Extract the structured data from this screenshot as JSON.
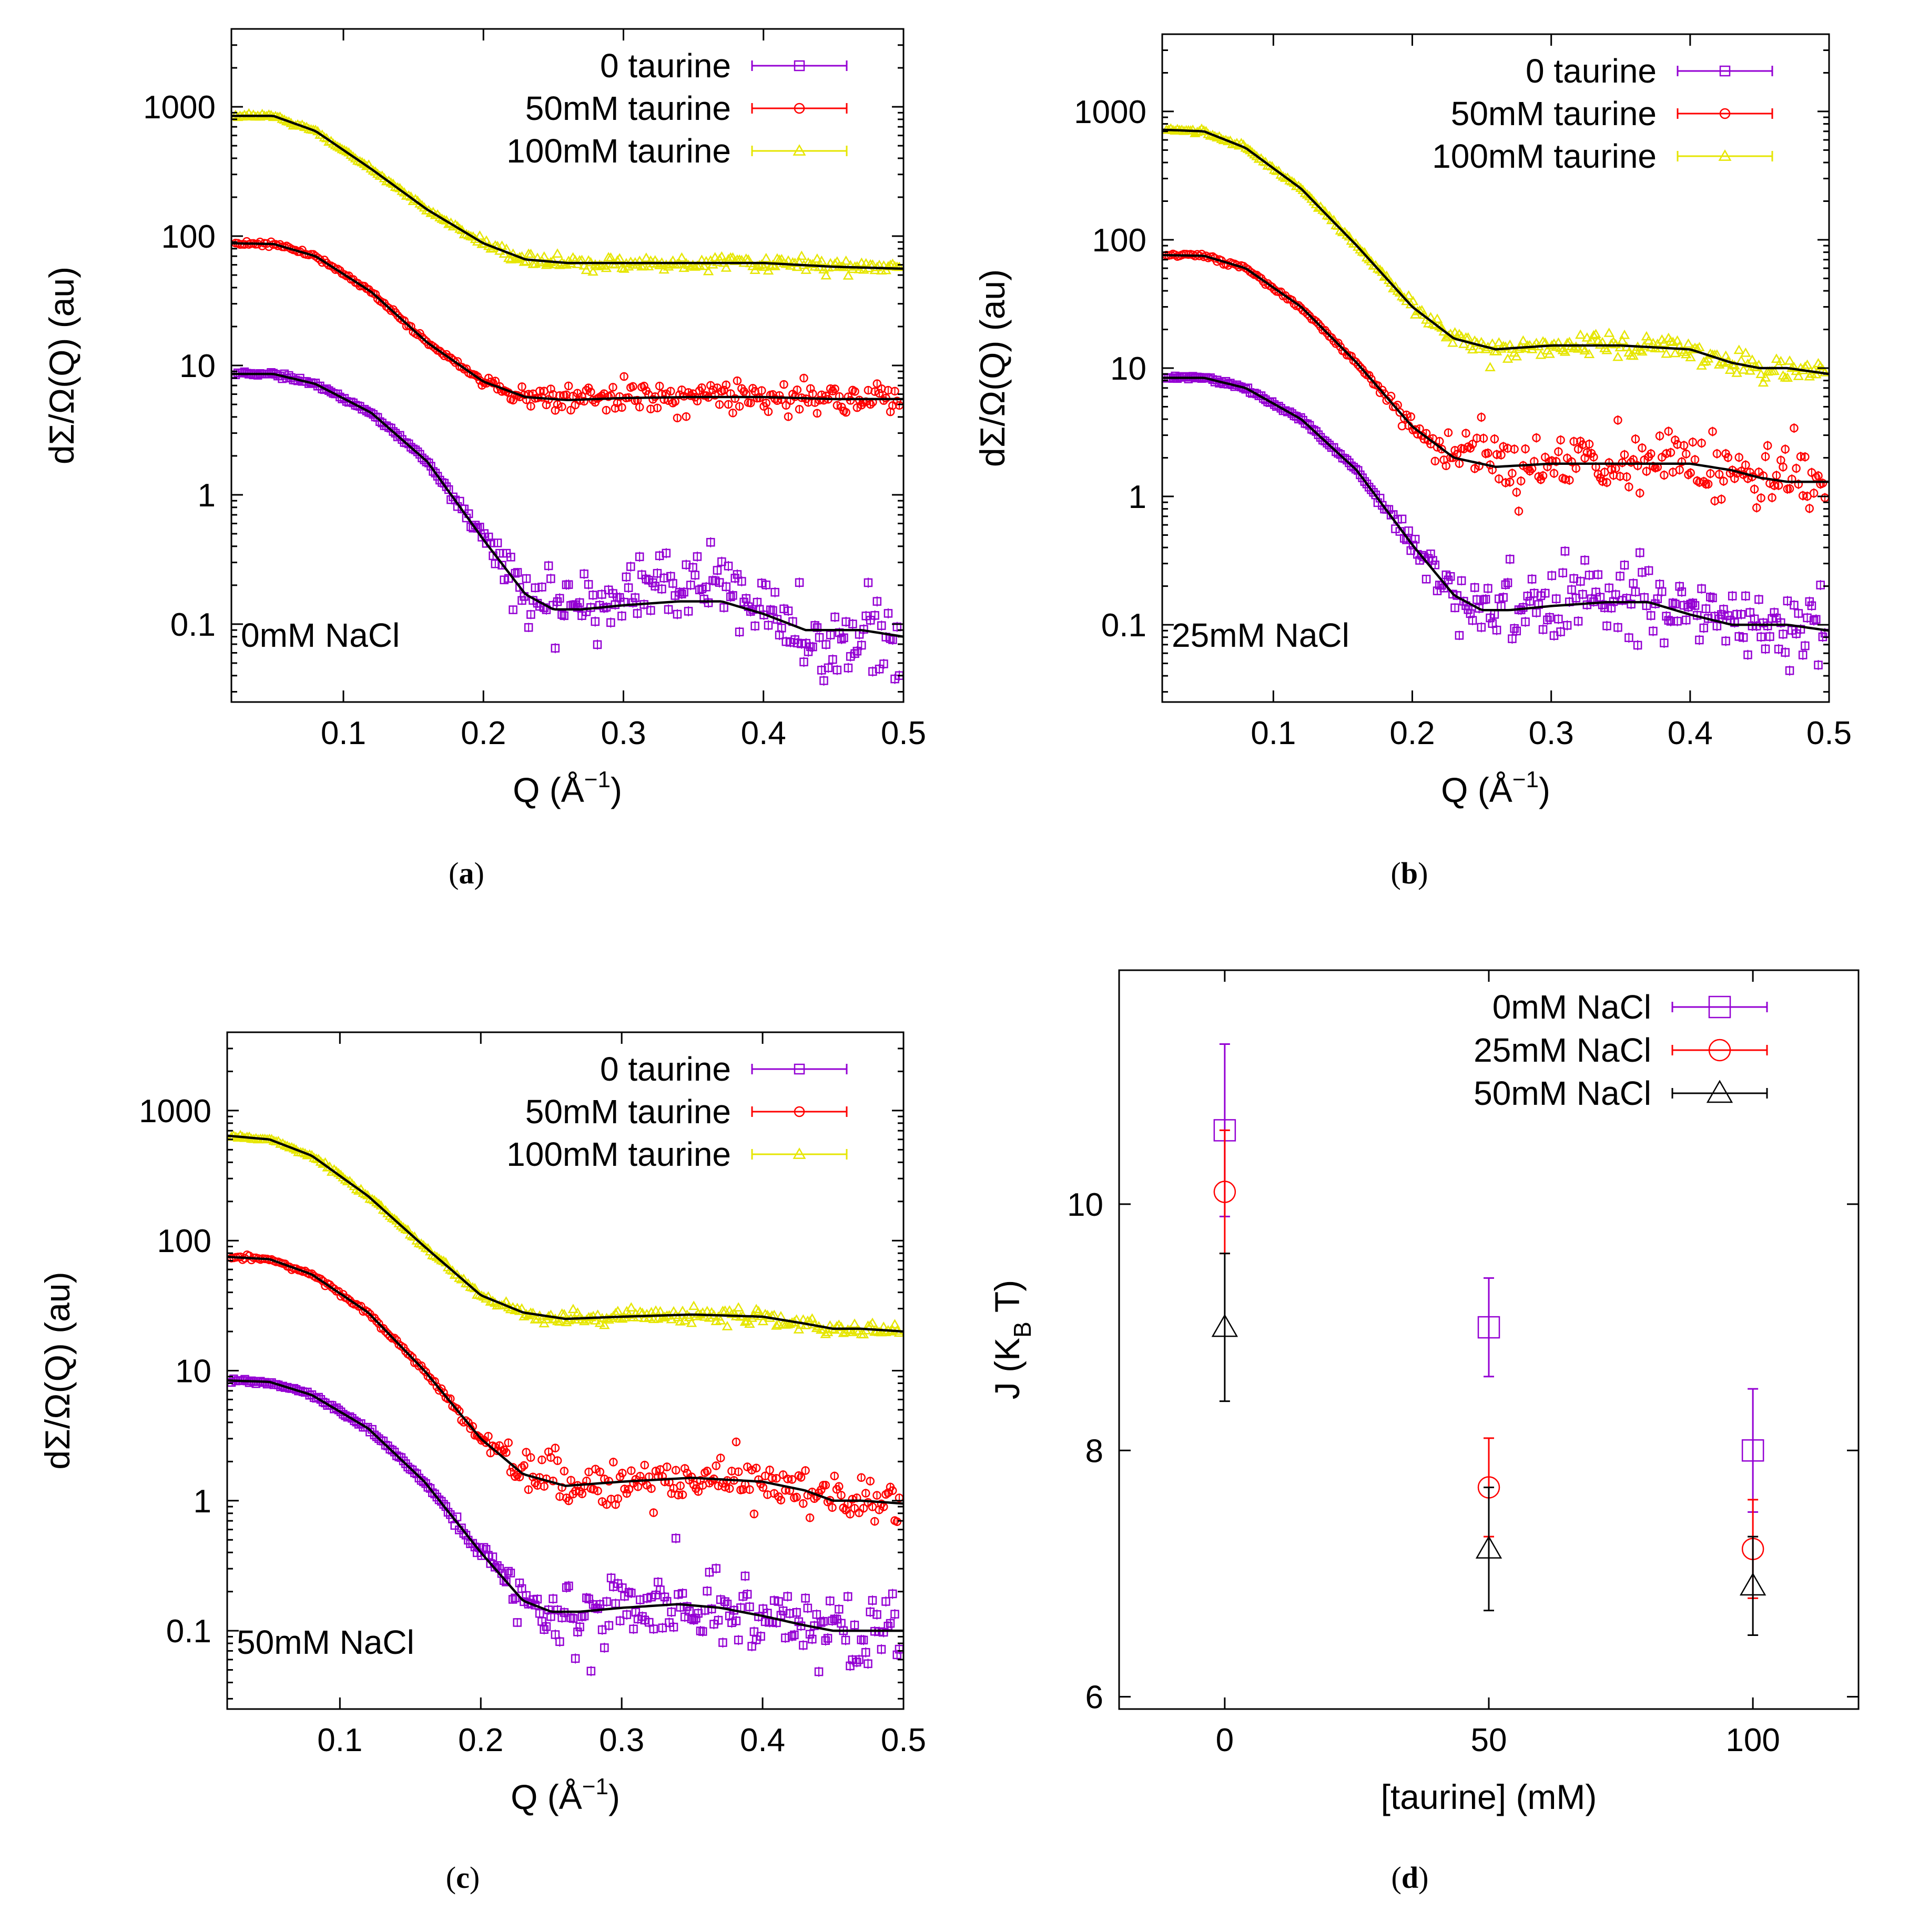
{
  "chart_data": [
    {
      "panel": "a",
      "caption": "(a)",
      "type": "scatter",
      "xscale": "linear",
      "yscale": "log",
      "xlabel": "Q (Å−1)",
      "xlabel_parts": [
        "Q (Å",
        "−1",
        ")"
      ],
      "ylabel": "dΣ/Ω(Q) (au)",
      "xlim": [
        0.02,
        0.5
      ],
      "ylim": [
        0.025,
        4000
      ],
      "xticks": [
        0.1,
        0.2,
        0.3,
        0.4,
        0.5
      ],
      "xtick_labels": [
        "0.1",
        "0.2",
        "0.3",
        "0.4",
        "0.5"
      ],
      "yticks": [
        0.1,
        1,
        10,
        100,
        1000
      ],
      "ytick_labels": [
        "0.1",
        "1",
        "10",
        "100",
        "1000"
      ],
      "annotation": "0mM NaCl",
      "legend_position": "top-right",
      "series": [
        {
          "name": "0 taurine",
          "color": "#9400d3",
          "marker": "square",
          "amplitude": 8.6,
          "rg": 33,
          "plateau": 0.15,
          "noise": 0.35,
          "bumps": [
            [
              0.35,
              0.35,
              0.05
            ],
            [
              0.45,
              -0.3,
              0.025
            ]
          ],
          "fit_x": [
            0.02,
            0.05,
            0.08,
            0.12,
            0.16,
            0.2,
            0.23,
            0.25,
            0.27,
            0.3,
            0.34,
            0.37,
            0.4,
            0.43,
            0.45,
            0.47,
            0.5
          ],
          "fit_y": [
            8.6,
            8.6,
            7.2,
            4.3,
            1.8,
            0.45,
            0.17,
            0.13,
            0.13,
            0.14,
            0.15,
            0.15,
            0.12,
            0.09,
            0.09,
            0.09,
            0.08
          ]
        },
        {
          "name": "50mM taurine",
          "color": "#ff0000",
          "marker": "circle",
          "amplitude": 88,
          "rg": 28,
          "plateau": 5.6,
          "noise": 0.12,
          "bumps": [],
          "fit_x": [
            0.02,
            0.05,
            0.08,
            0.12,
            0.16,
            0.2,
            0.23,
            0.26,
            0.3,
            0.35,
            0.4,
            0.45,
            0.5
          ],
          "fit_y": [
            88,
            87,
            70,
            37,
            15,
            7.5,
            5.7,
            5.4,
            5.6,
            5.7,
            5.7,
            5.5,
            5.5
          ]
        },
        {
          "name": "100mM taurine",
          "color": "#e6e600",
          "marker": "triangle",
          "amplitude": 850,
          "rg": 28,
          "plateau": 62,
          "noise": 0.05,
          "bumps": [],
          "fit_x": [
            0.02,
            0.05,
            0.08,
            0.12,
            0.16,
            0.2,
            0.23,
            0.26,
            0.3,
            0.35,
            0.4,
            0.45,
            0.5
          ],
          "fit_y": [
            850,
            850,
            650,
            330,
            160,
            88,
            66,
            62,
            62,
            62,
            62,
            58,
            56
          ]
        }
      ]
    },
    {
      "panel": "b",
      "caption": "(b)",
      "type": "scatter",
      "xscale": "linear",
      "yscale": "log",
      "xlabel": "Q (Å−1)",
      "xlabel_parts": [
        "Q (Å",
        "−1",
        ")"
      ],
      "ylabel": "dΣ/Ω(Q) (au)",
      "xlim": [
        0.02,
        0.5
      ],
      "ylim": [
        0.025,
        4000
      ],
      "xticks": [
        0.1,
        0.2,
        0.3,
        0.4,
        0.5
      ],
      "xtick_labels": [
        "0.1",
        "0.2",
        "0.3",
        "0.4",
        "0.5"
      ],
      "yticks": [
        0.1,
        1,
        10,
        100,
        1000
      ],
      "ytick_labels": [
        "0.1",
        "1",
        "10",
        "100",
        "1000"
      ],
      "annotation": "25mM NaCl",
      "legend_position": "top-right",
      "series": [
        {
          "name": "0 taurine",
          "color": "#9400d3",
          "marker": "square",
          "amplitude": 8.4,
          "rg": 33,
          "plateau": 0.14,
          "noise": 0.35,
          "bumps": [],
          "fit_x": [
            0.02,
            0.05,
            0.08,
            0.12,
            0.16,
            0.2,
            0.23,
            0.25,
            0.27,
            0.3,
            0.34,
            0.37,
            0.4,
            0.43,
            0.45,
            0.47,
            0.5
          ],
          "fit_y": [
            8.4,
            8.4,
            7.0,
            4.0,
            1.6,
            0.42,
            0.17,
            0.13,
            0.13,
            0.14,
            0.15,
            0.15,
            0.12,
            0.1,
            0.1,
            0.1,
            0.09
          ]
        },
        {
          "name": "50mM taurine",
          "color": "#ff0000",
          "marker": "circle",
          "amplitude": 76,
          "rg": 31,
          "plateau": 1.8,
          "noise": 0.3,
          "bumps": [],
          "fit_x": [
            0.02,
            0.05,
            0.08,
            0.12,
            0.16,
            0.2,
            0.23,
            0.26,
            0.3,
            0.35,
            0.4,
            0.43,
            0.45,
            0.47,
            0.5
          ],
          "fit_y": [
            76,
            75,
            60,
            30,
            11,
            3.5,
            2.0,
            1.7,
            1.8,
            1.8,
            1.8,
            1.6,
            1.4,
            1.3,
            1.3
          ]
        },
        {
          "name": "100mM taurine",
          "color": "#e6e600",
          "marker": "triangle",
          "amplitude": 720,
          "rg": 31,
          "plateau": 14,
          "noise": 0.1,
          "bumps": [],
          "fit_x": [
            0.02,
            0.05,
            0.08,
            0.12,
            0.16,
            0.2,
            0.23,
            0.26,
            0.3,
            0.35,
            0.4,
            0.43,
            0.45,
            0.47,
            0.5
          ],
          "fit_y": [
            720,
            700,
            520,
            250,
            90,
            30,
            17,
            14,
            15,
            15,
            14,
            11,
            10,
            10,
            9
          ]
        }
      ]
    },
    {
      "panel": "c",
      "caption": "(c)",
      "type": "scatter",
      "xscale": "linear",
      "yscale": "log",
      "xlabel": "Q (Å−1)",
      "xlabel_parts": [
        "Q (Å",
        "−1",
        ")"
      ],
      "ylabel": "dΣ/Ω(Q) (au)",
      "xlim": [
        0.02,
        0.5
      ],
      "ylim": [
        0.025,
        4000
      ],
      "xticks": [
        0.1,
        0.2,
        0.3,
        0.4,
        0.5
      ],
      "xtick_labels": [
        "0.1",
        "0.2",
        "0.3",
        "0.4",
        "0.5"
      ],
      "yticks": [
        0.1,
        1,
        10,
        100,
        1000
      ],
      "ytick_labels": [
        "0.1",
        "1",
        "10",
        "100",
        "1000"
      ],
      "annotation": "50mM NaCl",
      "legend_position": "top-right",
      "series": [
        {
          "name": "0 taurine",
          "color": "#9400d3",
          "marker": "square",
          "amplitude": 8.4,
          "rg": 33,
          "plateau": 0.15,
          "noise": 0.35,
          "bumps": [],
          "fit_x": [
            0.02,
            0.05,
            0.08,
            0.12,
            0.16,
            0.2,
            0.23,
            0.25,
            0.27,
            0.3,
            0.34,
            0.37,
            0.4,
            0.43,
            0.45,
            0.47,
            0.5
          ],
          "fit_y": [
            8.4,
            8.2,
            6.5,
            3.6,
            1.4,
            0.4,
            0.17,
            0.14,
            0.14,
            0.15,
            0.16,
            0.15,
            0.13,
            0.11,
            0.1,
            0.1,
            0.1
          ]
        },
        {
          "name": "50mM taurine",
          "color": "#ff0000",
          "marker": "circle",
          "amplitude": 75,
          "rg": 31,
          "plateau": 1.4,
          "noise": 0.22,
          "bumps": [],
          "fit_x": [
            0.02,
            0.05,
            0.08,
            0.12,
            0.16,
            0.2,
            0.23,
            0.26,
            0.3,
            0.35,
            0.4,
            0.43,
            0.45,
            0.47,
            0.5
          ],
          "fit_y": [
            75,
            72,
            55,
            28,
            10,
            3.0,
            1.6,
            1.3,
            1.4,
            1.5,
            1.4,
            1.2,
            1.0,
            1.0,
            0.95
          ]
        },
        {
          "name": "100mM taurine",
          "color": "#e6e600",
          "marker": "triangle",
          "amplitude": 640,
          "rg": 30,
          "plateau": 25,
          "noise": 0.05,
          "bumps": [],
          "fit_x": [
            0.02,
            0.05,
            0.08,
            0.12,
            0.16,
            0.2,
            0.23,
            0.26,
            0.3,
            0.35,
            0.4,
            0.43,
            0.45,
            0.47,
            0.5
          ],
          "fit_y": [
            640,
            600,
            450,
            220,
            90,
            38,
            28,
            25,
            26,
            27,
            26,
            23,
            21,
            21,
            20
          ]
        }
      ]
    },
    {
      "panel": "d",
      "caption": "(d)",
      "type": "scatter",
      "xscale": "linear",
      "yscale": "linear",
      "xlabel": "[taurine] (mM)",
      "ylabel": "J (KB T)",
      "ylabel_parts": [
        "J (K",
        "B",
        " T)"
      ],
      "xlim": [
        -20,
        120
      ],
      "ylim": [
        5.9,
        11.9
      ],
      "xticks": [
        0,
        50,
        100
      ],
      "xtick_labels": [
        "0",
        "50",
        "100"
      ],
      "yticks": [
        6,
        8,
        10
      ],
      "ytick_labels": [
        "6",
        "8",
        "10"
      ],
      "legend_position": "top-right",
      "series": [
        {
          "name": "0mM NaCl",
          "color": "#9400d3",
          "marker": "square",
          "x": [
            0,
            50,
            100
          ],
          "y": [
            10.6,
            9.0,
            8.0
          ],
          "err": [
            0.7,
            0.4,
            0.5
          ]
        },
        {
          "name": "25mM NaCl",
          "color": "#ff0000",
          "marker": "circle",
          "x": [
            0,
            50,
            100
          ],
          "y": [
            10.1,
            7.7,
            7.2
          ],
          "err": [
            0.5,
            0.4,
            0.4
          ]
        },
        {
          "name": "50mM NaCl",
          "color": "#000000",
          "marker": "triangle",
          "x": [
            0,
            50,
            100
          ],
          "y": [
            9.0,
            7.2,
            6.9
          ],
          "err": [
            0.6,
            0.5,
            0.4
          ]
        }
      ]
    }
  ]
}
